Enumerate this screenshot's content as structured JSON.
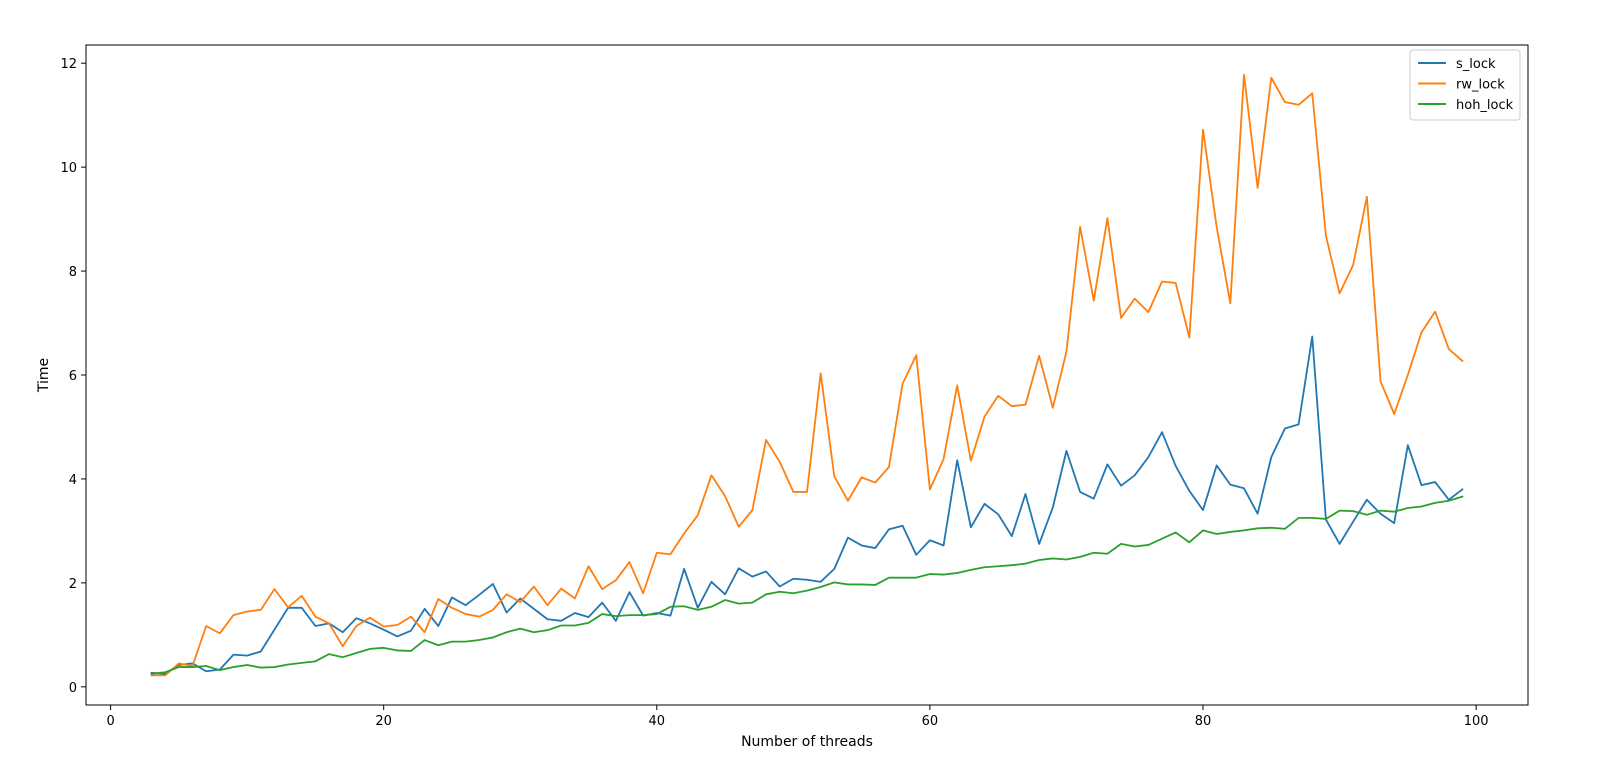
{
  "chart_data": {
    "type": "line",
    "title": "",
    "xlabel": "Number of threads",
    "ylabel": "Time",
    "xlim": [
      -1.8,
      103.8
    ],
    "ylim": [
      -0.35,
      12.35
    ],
    "xticks": [
      0,
      20,
      40,
      60,
      80,
      100
    ],
    "xtick_labels": [
      "0",
      "20",
      "40",
      "60",
      "80",
      "100"
    ],
    "yticks": [
      0,
      2,
      4,
      6,
      8,
      10,
      12
    ],
    "ytick_labels": [
      "0",
      "2",
      "4",
      "6",
      "8",
      "10",
      "12"
    ],
    "grid": false,
    "legend": "top-right",
    "x": [
      3,
      4,
      5,
      6,
      7,
      8,
      9,
      10,
      11,
      12,
      13,
      14,
      15,
      16,
      17,
      18,
      19,
      20,
      21,
      22,
      23,
      24,
      25,
      26,
      27,
      28,
      29,
      30,
      31,
      32,
      33,
      34,
      35,
      36,
      37,
      38,
      39,
      40,
      41,
      42,
      43,
      44,
      45,
      46,
      47,
      48,
      49,
      50,
      51,
      52,
      53,
      54,
      55,
      56,
      57,
      58,
      59,
      60,
      61,
      62,
      63,
      64,
      65,
      66,
      67,
      68,
      69,
      70,
      71,
      72,
      73,
      74,
      75,
      76,
      77,
      78,
      79,
      80,
      81,
      82,
      83,
      84,
      85,
      86,
      87,
      88,
      89,
      90,
      91,
      92,
      93,
      94,
      95,
      96,
      97,
      98,
      99
    ],
    "series": [
      {
        "name": "s_lock",
        "color": "#1f77b4",
        "values": [
          0.27,
          0.25,
          0.42,
          0.45,
          0.3,
          0.33,
          0.62,
          0.6,
          0.68,
          1.1,
          1.52,
          1.52,
          1.17,
          1.22,
          1.05,
          1.32,
          1.22,
          1.1,
          0.97,
          1.08,
          1.5,
          1.17,
          1.72,
          1.57,
          1.77,
          1.98,
          1.43,
          1.7,
          1.5,
          1.3,
          1.27,
          1.42,
          1.34,
          1.62,
          1.27,
          1.82,
          1.37,
          1.42,
          1.37,
          2.27,
          1.52,
          2.02,
          1.78,
          2.28,
          2.12,
          2.22,
          1.93,
          2.08,
          2.06,
          2.02,
          2.27,
          2.87,
          2.72,
          2.67,
          3.03,
          3.1,
          2.54,
          2.82,
          2.72,
          4.36,
          3.07,
          3.52,
          3.32,
          2.9,
          3.71,
          2.75,
          3.45,
          4.54,
          3.75,
          3.62,
          4.28,
          3.87,
          4.07,
          4.42,
          4.9,
          4.25,
          3.77,
          3.4,
          4.26,
          3.89,
          3.82,
          3.33,
          4.42,
          4.97,
          5.05,
          6.74,
          3.22,
          2.75,
          3.18,
          3.6,
          3.33,
          3.15,
          4.65,
          3.88,
          3.94,
          3.6,
          3.8
        ]
      },
      {
        "name": "rw_lock",
        "color": "#ff7f0e",
        "values": [
          0.22,
          0.22,
          0.45,
          0.4,
          1.17,
          1.03,
          1.38,
          1.45,
          1.48,
          1.88,
          1.53,
          1.75,
          1.35,
          1.22,
          0.78,
          1.17,
          1.33,
          1.16,
          1.19,
          1.35,
          1.05,
          1.69,
          1.52,
          1.4,
          1.35,
          1.48,
          1.78,
          1.63,
          1.93,
          1.57,
          1.89,
          1.7,
          2.32,
          1.88,
          2.05,
          2.4,
          1.8,
          2.58,
          2.55,
          2.95,
          3.3,
          4.07,
          3.67,
          3.08,
          3.4,
          4.75,
          4.33,
          3.75,
          3.75,
          6.03,
          4.05,
          3.58,
          4.03,
          3.93,
          4.23,
          5.83,
          6.38,
          3.8,
          4.38,
          5.8,
          4.35,
          5.2,
          5.6,
          5.4,
          5.43,
          6.37,
          5.37,
          6.45,
          8.85,
          7.43,
          9.02,
          7.1,
          7.47,
          7.21,
          7.8,
          7.77,
          6.72,
          10.72,
          8.85,
          7.38,
          11.78,
          9.6,
          11.72,
          11.25,
          11.2,
          11.42,
          8.68,
          7.57,
          8.12,
          9.43,
          5.88,
          5.25,
          6.0,
          6.82,
          7.22,
          6.5,
          6.27
        ]
      },
      {
        "name": "hoh_lock",
        "color": "#2ca02c",
        "values": [
          0.25,
          0.28,
          0.38,
          0.38,
          0.4,
          0.32,
          0.38,
          0.42,
          0.37,
          0.38,
          0.43,
          0.46,
          0.49,
          0.63,
          0.57,
          0.65,
          0.73,
          0.75,
          0.7,
          0.69,
          0.9,
          0.8,
          0.87,
          0.87,
          0.9,
          0.95,
          1.05,
          1.12,
          1.05,
          1.09,
          1.18,
          1.18,
          1.23,
          1.4,
          1.36,
          1.38,
          1.38,
          1.4,
          1.54,
          1.55,
          1.48,
          1.54,
          1.67,
          1.6,
          1.62,
          1.78,
          1.83,
          1.8,
          1.85,
          1.92,
          2.01,
          1.97,
          1.97,
          1.96,
          2.1,
          2.1,
          2.1,
          2.17,
          2.16,
          2.19,
          2.25,
          2.3,
          2.32,
          2.34,
          2.37,
          2.44,
          2.47,
          2.45,
          2.5,
          2.58,
          2.56,
          2.75,
          2.7,
          2.73,
          2.85,
          2.97,
          2.78,
          3.01,
          2.94,
          2.98,
          3.01,
          3.05,
          3.06,
          3.04,
          3.25,
          3.25,
          3.23,
          3.39,
          3.38,
          3.31,
          3.39,
          3.37,
          3.44,
          3.47,
          3.54,
          3.58,
          3.66
        ]
      }
    ]
  }
}
